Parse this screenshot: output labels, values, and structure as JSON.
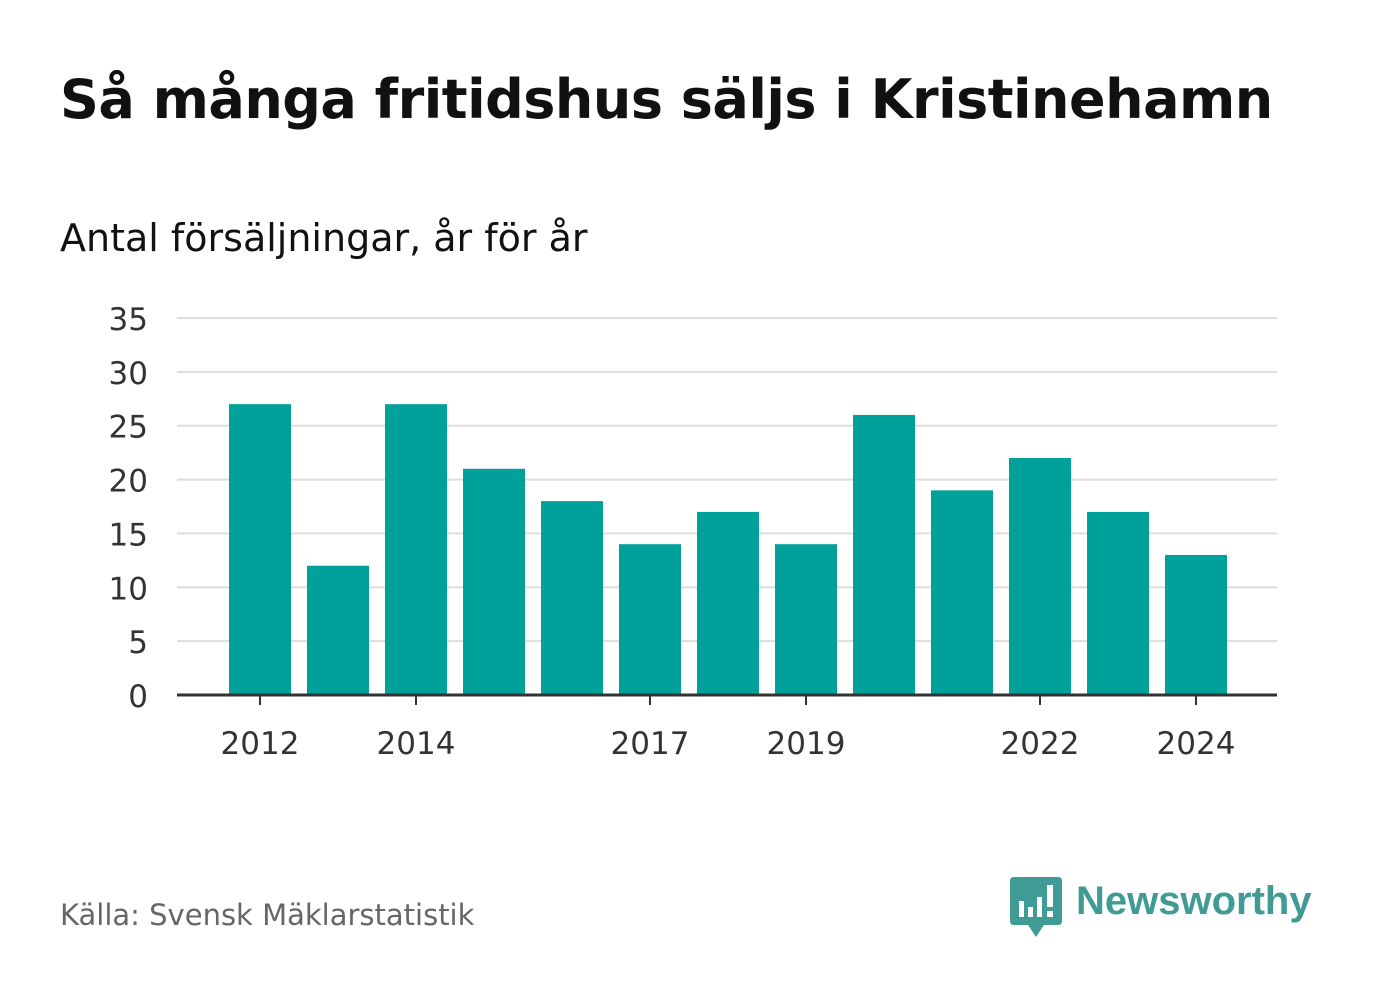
{
  "header": {
    "title": "Så många fritidshus säljs i Kristinehamn",
    "subtitle": "Antal försäljningar, år för år"
  },
  "footer": {
    "source": "Källa: Svensk Mäklarstatistik",
    "brand": "Newsworthy",
    "brand_icon": "newsworthy-logo-icon"
  },
  "colors": {
    "bar": "#00a19a",
    "grid": "#dddddd",
    "axis": "#333333",
    "brand": "#3f9b94",
    "source": "#666666"
  },
  "chart_data": {
    "type": "bar",
    "categories": [
      "2012",
      "2013",
      "2014",
      "2015",
      "2016",
      "2017",
      "2018",
      "2019",
      "2020",
      "2021",
      "2022",
      "2023",
      "2024"
    ],
    "values": [
      27,
      12,
      27,
      21,
      18,
      14,
      17,
      14,
      26,
      19,
      22,
      17,
      13
    ],
    "xtick_labels": [
      "2012",
      "2014",
      "2017",
      "2019",
      "2022",
      "2024"
    ],
    "ylim": [
      0,
      35
    ],
    "yticks": [
      0,
      5,
      10,
      15,
      20,
      25,
      30,
      35
    ],
    "title": "Så många fritidshus säljs i Kristinehamn",
    "subtitle": "Antal försäljningar, år för år",
    "xlabel": "",
    "ylabel": "",
    "grid": true,
    "legend": "none"
  }
}
